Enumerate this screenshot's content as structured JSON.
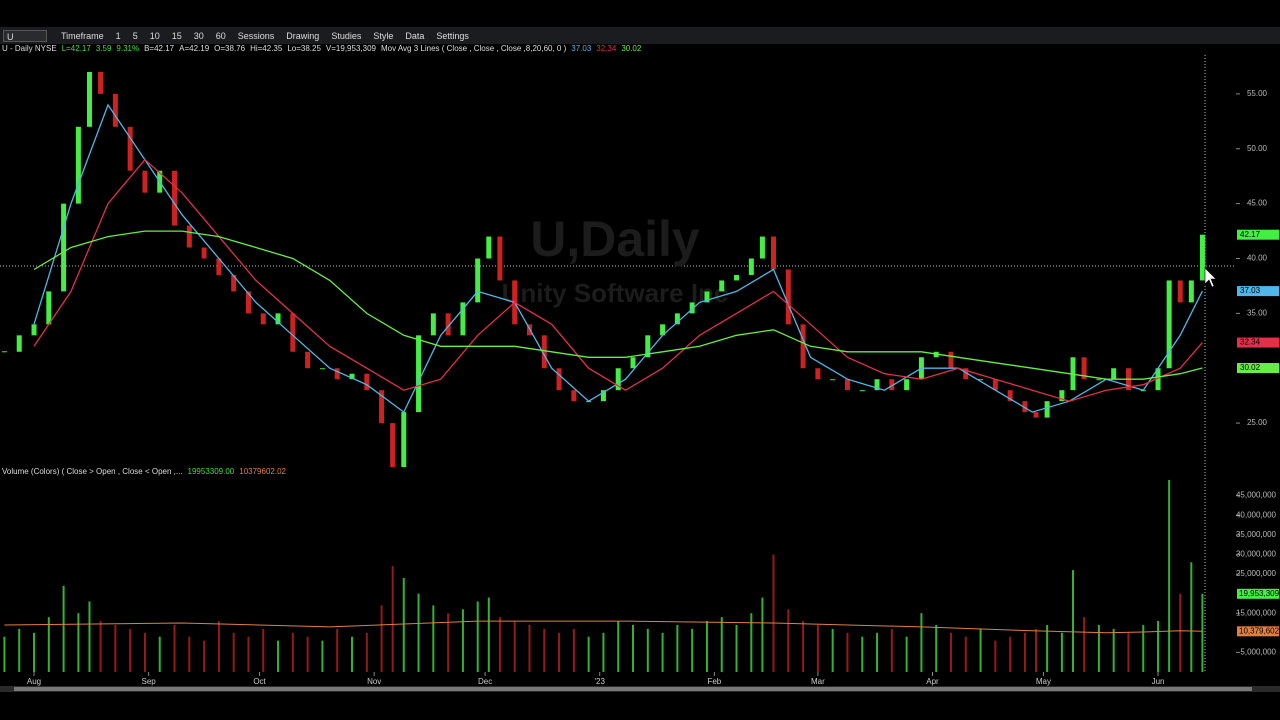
{
  "toolbar": {
    "symbol": "U",
    "items": [
      "Timeframe",
      "1",
      "5",
      "10",
      "15",
      "30",
      "60",
      "Sessions",
      "Drawing",
      "Studies",
      "Style",
      "Data",
      "Settings"
    ]
  },
  "chart_data": [
    {
      "type": "candlestick",
      "header": [
        {
          "text": "U - Daily  NYSE",
          "color": "#dddddd"
        },
        {
          "text": "L=42.17",
          "color": "#44dd44"
        },
        {
          "text": "3.59",
          "color": "#44dd44"
        },
        {
          "text": "9.31%",
          "color": "#44dd44"
        },
        {
          "text": "B=42.17",
          "color": "#dddddd"
        },
        {
          "text": "A=42.19",
          "color": "#dddddd"
        },
        {
          "text": "O=38.76",
          "color": "#dddddd"
        },
        {
          "text": "Hi=42.35",
          "color": "#dddddd"
        },
        {
          "text": "Lo=38.25",
          "color": "#dddddd"
        },
        {
          "text": "V=19,953,309",
          "color": "#dddddd"
        },
        {
          "text": "Mov Avg 3 Lines ( Close , Close , Close ,8,20,60, 0 )",
          "color": "#dddddd"
        }
      ],
      "watermark": [
        "U,Daily",
        "Unity Software Inc"
      ],
      "up_color": "#44ee44",
      "down_color": "#cc2222",
      "x": [
        -8,
        -4,
        0,
        4,
        8,
        12,
        15,
        18,
        22,
        26,
        30,
        34,
        38,
        42,
        46,
        50,
        54,
        58,
        62,
        66,
        70,
        74,
        78,
        82,
        86,
        90,
        94,
        97,
        100,
        104,
        108,
        112,
        116,
        120,
        123,
        126,
        130,
        134,
        138,
        142,
        146,
        150,
        154,
        158,
        162,
        166,
        170,
        174,
        178,
        182,
        186,
        190,
        194,
        197,
        200,
        204,
        208,
        212,
        216,
        220,
        224,
        228,
        232,
        236,
        240,
        244,
        248,
        252,
        256,
        260,
        264,
        268,
        271,
        274,
        278,
        281,
        284,
        288,
        292,
        296,
        300,
        304,
        307,
        310,
        313,
        316
      ],
      "close": [
        31.5,
        33,
        34,
        37,
        45,
        52,
        57,
        55,
        52,
        48,
        46,
        48,
        43,
        41,
        40,
        38.5,
        37,
        35,
        34,
        35,
        31.5,
        30,
        30,
        29,
        29.5,
        28,
        25,
        21,
        26,
        33,
        35,
        33,
        36,
        40,
        42,
        38,
        34,
        33,
        30,
        28,
        27,
        27,
        28,
        30,
        31,
        33,
        34,
        35,
        36,
        37,
        38,
        38.5,
        40,
        42,
        39,
        34,
        30,
        29,
        29,
        28,
        28,
        29,
        28,
        29,
        31,
        31.5,
        30,
        29,
        29,
        28,
        27,
        26,
        25.5,
        27,
        28,
        31,
        29,
        29,
        30,
        28,
        28,
        30,
        38,
        36,
        38,
        42.17
      ],
      "series": [
        {
          "color": "#4fb8e8",
          "x": [
            0,
            10,
            20,
            30,
            40,
            50,
            60,
            70,
            80,
            90,
            100,
            110,
            120,
            130,
            140,
            150,
            160,
            170,
            180,
            190,
            200,
            210,
            220,
            230,
            240,
            250,
            260,
            270,
            280,
            290,
            300,
            310,
            316
          ],
          "values": [
            34,
            45,
            54,
            49,
            44,
            40,
            36,
            33,
            30,
            28.5,
            26,
            33,
            37,
            36,
            30,
            27,
            29,
            33,
            36,
            37,
            39,
            31,
            29,
            28,
            30,
            30,
            28,
            26,
            27,
            29,
            28,
            33,
            37.03
          ]
        },
        {
          "color": "#e0304a",
          "x": [
            0,
            10,
            20,
            30,
            40,
            50,
            60,
            70,
            80,
            90,
            100,
            110,
            120,
            130,
            140,
            150,
            160,
            170,
            180,
            190,
            200,
            210,
            220,
            230,
            240,
            250,
            260,
            270,
            280,
            290,
            300,
            310,
            316
          ],
          "values": [
            32,
            37,
            45,
            49,
            46,
            42,
            38,
            35,
            32,
            30,
            28,
            29,
            33,
            36,
            34,
            30,
            28,
            30,
            33,
            35,
            37,
            34,
            31,
            29.5,
            29,
            30,
            29,
            28,
            27,
            28,
            28.5,
            30,
            32.34
          ]
        },
        {
          "color": "#66ee44",
          "x": [
            0,
            10,
            20,
            30,
            40,
            50,
            60,
            70,
            80,
            90,
            100,
            110,
            120,
            130,
            140,
            150,
            160,
            170,
            180,
            190,
            200,
            210,
            220,
            230,
            240,
            250,
            260,
            270,
            280,
            290,
            300,
            310,
            316
          ],
          "values": [
            39,
            41,
            42,
            42.5,
            42.5,
            42,
            41,
            40,
            38,
            35,
            33,
            32,
            32,
            32,
            31.5,
            31,
            31,
            31.5,
            32,
            33,
            33.5,
            32,
            31.5,
            31.5,
            31.5,
            31,
            30.5,
            30,
            29.5,
            29,
            29,
            29.5,
            30.02
          ]
        }
      ],
      "xlim": [
        -9.2,
        316.7
      ],
      "ylim": [
        59,
        21
      ],
      "yticks": [
        {
          "value": 55,
          "label": "55.00"
        },
        {
          "value": 50,
          "label": "50.00"
        },
        {
          "value": 45,
          "label": "45.00"
        },
        {
          "value": 40,
          "label": "40.00"
        },
        {
          "value": 35,
          "label": "35.00"
        },
        {
          "value": 25,
          "label": "25.00"
        }
      ]
    },
    {
      "type": "bar",
      "header": [
        {
          "text": "Volume (Colors) ( Close > Open , Close < Open ,...",
          "color": "#dddddd"
        },
        {
          "text": "19953309.00",
          "color": "#44dd44"
        },
        {
          "text": "10379602.02",
          "color": "#e08040"
        }
      ],
      "values": [
        9000000,
        11000000,
        10000000,
        14000000,
        22000000,
        15000000,
        18000000,
        13000000,
        12000000,
        11000000,
        10000000,
        9000000,
        12000000,
        9000000,
        8000000,
        13000000,
        10000000,
        9000000,
        11000000,
        8000000,
        10000000,
        9000000,
        8000000,
        11000000,
        9000000,
        10000000,
        17000000,
        27000000,
        24000000,
        20000000,
        17000000,
        15000000,
        16000000,
        18000000,
        19000000,
        14000000,
        13000000,
        12000000,
        11000000,
        10000000,
        11000000,
        9000000,
        10000000,
        13000000,
        12000000,
        11000000,
        10000000,
        12000000,
        11000000,
        13000000,
        14000000,
        12000000,
        15000000,
        19000000,
        30000000,
        16000000,
        13000000,
        12000000,
        11000000,
        10000000,
        9000000,
        10000000,
        11000000,
        9000000,
        15000000,
        12000000,
        10000000,
        9000000,
        11000000,
        8000000,
        9000000,
        10000000,
        11000000,
        12000000,
        10000000,
        26000000,
        14000000,
        12000000,
        11000000,
        10000000,
        12000000,
        13000000,
        49000000,
        20000000,
        28000000,
        19953309
      ],
      "average": {
        "color": "#e08040",
        "x": [
          -8,
          40,
          80,
          120,
          160,
          200,
          240,
          270,
          290,
          300,
          310,
          316
        ],
        "values": [
          12000000,
          12500000,
          11500000,
          13000000,
          13000000,
          12500000,
          11500000,
          10500000,
          10000000,
          10200000,
          10500000,
          10379602.02
        ]
      },
      "last_value_labels": [
        "19,953,309",
        "10,379,602"
      ],
      "ylim": [
        0,
        49500000
      ],
      "yticks": [
        {
          "value": 45000000,
          "label": "45,000,000"
        },
        {
          "value": 40000000,
          "label": "40,000,000"
        },
        {
          "value": 35000000,
          "label": "35,000,000"
        },
        {
          "value": 30000000,
          "label": "30,000,000"
        },
        {
          "value": 25000000,
          "label": "25,000,000"
        },
        {
          "value": 15000000,
          "label": "15,000,000"
        },
        {
          "value": 5000000,
          "label": "5,000,000"
        }
      ],
      "xticks": [
        {
          "value": 0,
          "label": "Aug"
        },
        {
          "value": 31,
          "label": "Sep"
        },
        {
          "value": 61,
          "label": "Oct"
        },
        {
          "value": 92,
          "label": "Nov"
        },
        {
          "value": 122,
          "label": "Dec"
        },
        {
          "value": 153,
          "label": "'23"
        },
        {
          "value": 184,
          "label": "Feb"
        },
        {
          "value": 212,
          "label": "Mar"
        },
        {
          "value": 243,
          "label": "Apr"
        },
        {
          "value": 273,
          "label": "May"
        },
        {
          "value": 304,
          "label": "Jun"
        }
      ]
    }
  ]
}
